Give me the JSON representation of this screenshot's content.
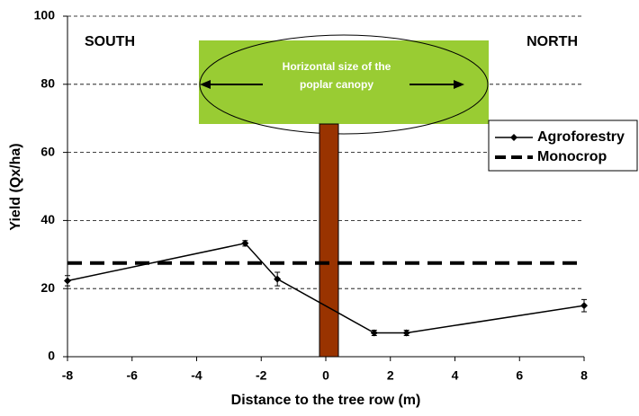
{
  "chart_data": {
    "type": "line",
    "x_label": "Distance to the tree row (m)",
    "y_label": "Yield (Qx/ha)",
    "annotations": [
      "SOUTH",
      "NORTH",
      "Horizontal size of the",
      "poplar canopy"
    ],
    "x": [
      -8,
      -2.5,
      -1.5,
      1.5,
      2.5,
      8
    ],
    "series": [
      {
        "name": "Agroforestry",
        "color": "#000000",
        "style": "solid",
        "marker": "diamond",
        "values": [
          22.3,
          33.3,
          22.8,
          7,
          7,
          15
        ],
        "errors": [
          1.5,
          0.8,
          2,
          0.8,
          0.8,
          1.8
        ]
      },
      {
        "name": "Monocrop",
        "color": "#000000",
        "style": "dash",
        "values": [
          27.5,
          27.5,
          27.5,
          27.5,
          27.5,
          27.5
        ]
      }
    ],
    "xlim": [
      -8,
      8
    ],
    "xticks": [
      -8,
      -6,
      -4,
      -2,
      0,
      2,
      4,
      6,
      8
    ],
    "ylim": [
      0,
      100
    ],
    "yticks": [
      0,
      20,
      40,
      60,
      80,
      100
    ],
    "grid": true,
    "legend": "right"
  }
}
